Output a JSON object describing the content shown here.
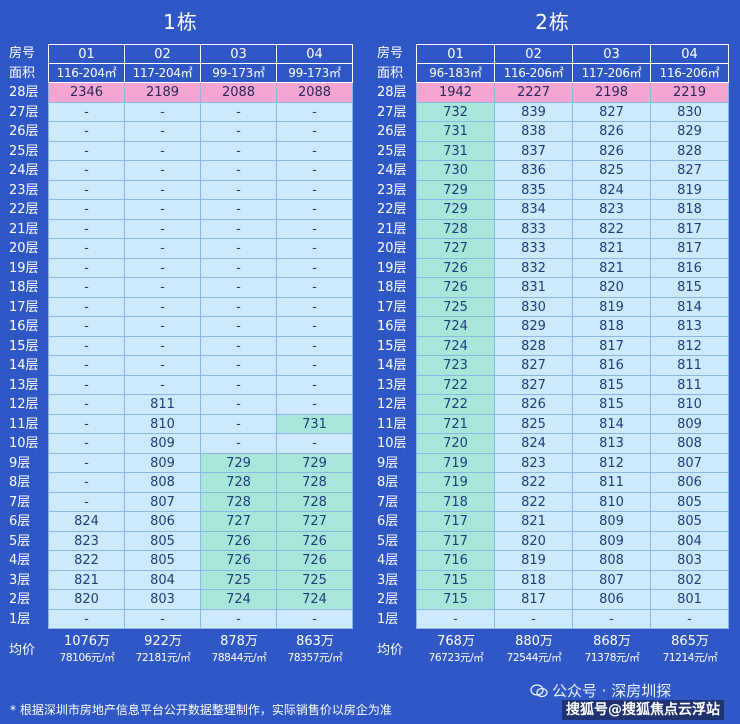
{
  "labels": {
    "room_no": "房号",
    "area": "面积",
    "avg": "均价"
  },
  "buildings": [
    {
      "title": "1栋",
      "units": [
        "01",
        "02",
        "03",
        "04"
      ],
      "areas": [
        "116-204㎡",
        "117-204㎡",
        "99-173㎡",
        "99-173㎡"
      ],
      "floors": [
        {
          "label": "28层",
          "cells": [
            "2346",
            "2189",
            "2088",
            "2088"
          ]
        },
        {
          "label": "27层",
          "cells": [
            "-",
            "-",
            "-",
            "-"
          ]
        },
        {
          "label": "26层",
          "cells": [
            "-",
            "-",
            "-",
            "-"
          ]
        },
        {
          "label": "25层",
          "cells": [
            "-",
            "-",
            "-",
            "-"
          ]
        },
        {
          "label": "24层",
          "cells": [
            "-",
            "-",
            "-",
            "-"
          ]
        },
        {
          "label": "23层",
          "cells": [
            "-",
            "-",
            "-",
            "-"
          ]
        },
        {
          "label": "22层",
          "cells": [
            "-",
            "-",
            "-",
            "-"
          ]
        },
        {
          "label": "21层",
          "cells": [
            "-",
            "-",
            "-",
            "-"
          ]
        },
        {
          "label": "20层",
          "cells": [
            "-",
            "-",
            "-",
            "-"
          ]
        },
        {
          "label": "19层",
          "cells": [
            "-",
            "-",
            "-",
            "-"
          ]
        },
        {
          "label": "18层",
          "cells": [
            "-",
            "-",
            "-",
            "-"
          ]
        },
        {
          "label": "17层",
          "cells": [
            "-",
            "-",
            "-",
            "-"
          ]
        },
        {
          "label": "16层",
          "cells": [
            "-",
            "-",
            "-",
            "-"
          ]
        },
        {
          "label": "15层",
          "cells": [
            "-",
            "-",
            "-",
            "-"
          ]
        },
        {
          "label": "14层",
          "cells": [
            "-",
            "-",
            "-",
            "-"
          ]
        },
        {
          "label": "13层",
          "cells": [
            "-",
            "-",
            "-",
            "-"
          ]
        },
        {
          "label": "12层",
          "cells": [
            "-",
            "811",
            "-",
            "-"
          ]
        },
        {
          "label": "11层",
          "cells": [
            "-",
            "810",
            "-",
            "731"
          ]
        },
        {
          "label": "10层",
          "cells": [
            "-",
            "809",
            "-",
            "-"
          ]
        },
        {
          "label": "9层",
          "cells": [
            "-",
            "809",
            "729",
            "729"
          ]
        },
        {
          "label": "8层",
          "cells": [
            "-",
            "808",
            "728",
            "728"
          ]
        },
        {
          "label": "7层",
          "cells": [
            "-",
            "807",
            "728",
            "728"
          ]
        },
        {
          "label": "6层",
          "cells": [
            "824",
            "806",
            "727",
            "727"
          ]
        },
        {
          "label": "5层",
          "cells": [
            "823",
            "805",
            "726",
            "726"
          ]
        },
        {
          "label": "4层",
          "cells": [
            "822",
            "805",
            "726",
            "726"
          ]
        },
        {
          "label": "3层",
          "cells": [
            "821",
            "804",
            "725",
            "725"
          ]
        },
        {
          "label": "2层",
          "cells": [
            "820",
            "803",
            "724",
            "724"
          ]
        },
        {
          "label": "1层",
          "cells": [
            "-",
            "-",
            "-",
            "-"
          ]
        }
      ],
      "totals": [
        "1076万",
        "922万",
        "878万",
        "863万"
      ],
      "unit_prices": [
        "78106元/㎡",
        "72181元/㎡",
        "78844元/㎡",
        "78357元/㎡"
      ]
    },
    {
      "title": "2栋",
      "units": [
        "01",
        "02",
        "03",
        "04"
      ],
      "areas": [
        "96-183㎡",
        "116-206㎡",
        "117-206㎡",
        "116-206㎡"
      ],
      "floors": [
        {
          "label": "28层",
          "cells": [
            "1942",
            "2227",
            "2198",
            "2219"
          ]
        },
        {
          "label": "27层",
          "cells": [
            "732",
            "839",
            "827",
            "830"
          ]
        },
        {
          "label": "26层",
          "cells": [
            "731",
            "838",
            "826",
            "829"
          ]
        },
        {
          "label": "25层",
          "cells": [
            "731",
            "837",
            "826",
            "828"
          ]
        },
        {
          "label": "24层",
          "cells": [
            "730",
            "836",
            "825",
            "827"
          ]
        },
        {
          "label": "23层",
          "cells": [
            "729",
            "835",
            "824",
            "819"
          ]
        },
        {
          "label": "22层",
          "cells": [
            "729",
            "834",
            "823",
            "818"
          ]
        },
        {
          "label": "21层",
          "cells": [
            "728",
            "833",
            "822",
            "817"
          ]
        },
        {
          "label": "20层",
          "cells": [
            "727",
            "833",
            "821",
            "817"
          ]
        },
        {
          "label": "19层",
          "cells": [
            "726",
            "832",
            "821",
            "816"
          ]
        },
        {
          "label": "18层",
          "cells": [
            "726",
            "831",
            "820",
            "815"
          ]
        },
        {
          "label": "17层",
          "cells": [
            "725",
            "830",
            "819",
            "814"
          ]
        },
        {
          "label": "16层",
          "cells": [
            "724",
            "829",
            "818",
            "813"
          ]
        },
        {
          "label": "15层",
          "cells": [
            "724",
            "828",
            "817",
            "812"
          ]
        },
        {
          "label": "14层",
          "cells": [
            "723",
            "827",
            "816",
            "811"
          ]
        },
        {
          "label": "13层",
          "cells": [
            "722",
            "827",
            "815",
            "811"
          ]
        },
        {
          "label": "12层",
          "cells": [
            "722",
            "826",
            "815",
            "810"
          ]
        },
        {
          "label": "11层",
          "cells": [
            "721",
            "825",
            "814",
            "809"
          ]
        },
        {
          "label": "10层",
          "cells": [
            "720",
            "824",
            "813",
            "808"
          ]
        },
        {
          "label": "9层",
          "cells": [
            "719",
            "823",
            "812",
            "807"
          ]
        },
        {
          "label": "8层",
          "cells": [
            "719",
            "822",
            "811",
            "806"
          ]
        },
        {
          "label": "7层",
          "cells": [
            "718",
            "822",
            "810",
            "805"
          ]
        },
        {
          "label": "6层",
          "cells": [
            "717",
            "821",
            "809",
            "805"
          ]
        },
        {
          "label": "5层",
          "cells": [
            "717",
            "820",
            "809",
            "804"
          ]
        },
        {
          "label": "4层",
          "cells": [
            "716",
            "819",
            "808",
            "803"
          ]
        },
        {
          "label": "3层",
          "cells": [
            "715",
            "818",
            "807",
            "802"
          ]
        },
        {
          "label": "2层",
          "cells": [
            "715",
            "817",
            "806",
            "801"
          ]
        },
        {
          "label": "1层",
          "cells": [
            "-",
            "-",
            "-",
            "-"
          ]
        }
      ],
      "totals": [
        "768万",
        "880万",
        "868万",
        "865万"
      ],
      "unit_prices": [
        "76723元/㎡",
        "72544元/㎡",
        "71378元/㎡",
        "71214元/㎡"
      ]
    }
  ],
  "footnote": "* 根据深圳市房地产信息平台公开数据整理制作，实际销售价以房企为准",
  "watermark_account": "公众号 · 深房圳探",
  "watermark_sohu": "搜狐号@搜狐焦点云浮站",
  "colors": {
    "background": "#2f58c6",
    "cell": "#cdeafc",
    "cell_teal": "#a9e6da",
    "cell_top_floor": "#f5a5d1"
  }
}
